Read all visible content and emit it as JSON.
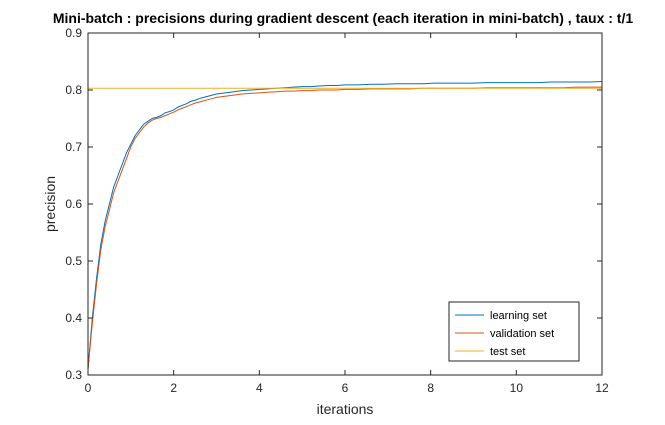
{
  "chart_data": {
    "type": "line",
    "title": "Mini-batch : precisions during gradient descent (each iteration in mini-batch) , taux : t/1",
    "xlabel": "iterations",
    "ylabel": "precision",
    "xlim": [
      0,
      12
    ],
    "ylim": [
      0.3,
      0.9
    ],
    "xticks": [
      0,
      2,
      4,
      6,
      8,
      10,
      12
    ],
    "yticks": [
      0.3,
      0.4,
      0.5,
      0.6,
      0.7,
      0.8,
      0.9
    ],
    "grid": false,
    "legend_position": "bottom-right",
    "x": [
      0,
      0.1,
      0.2,
      0.3,
      0.4,
      0.5,
      0.6,
      0.7,
      0.8,
      0.9,
      1.0,
      1.1,
      1.2,
      1.3,
      1.4,
      1.5,
      1.6,
      1.7,
      1.8,
      1.9,
      2.0,
      2.1,
      2.2,
      2.3,
      2.4,
      2.5,
      2.6,
      2.7,
      2.8,
      2.9,
      3.0,
      3.2,
      3.4,
      3.6,
      3.8,
      4.0,
      4.2,
      4.4,
      4.6,
      4.8,
      5.0,
      5.2,
      5.4,
      5.6,
      5.8,
      6.0,
      6.3,
      6.6,
      6.9,
      7.2,
      7.5,
      7.8,
      8.1,
      8.4,
      8.7,
      9.0,
      9.3,
      9.6,
      9.9,
      10.2,
      10.5,
      10.8,
      11.1,
      11.4,
      11.7,
      12.0
    ],
    "series": [
      {
        "name": "learning set",
        "color": "#0072bd",
        "values": [
          0.31,
          0.4,
          0.47,
          0.53,
          0.57,
          0.6,
          0.63,
          0.65,
          0.67,
          0.69,
          0.705,
          0.72,
          0.73,
          0.74,
          0.745,
          0.75,
          0.752,
          0.755,
          0.76,
          0.762,
          0.765,
          0.77,
          0.773,
          0.776,
          0.78,
          0.782,
          0.785,
          0.787,
          0.789,
          0.791,
          0.793,
          0.795,
          0.797,
          0.799,
          0.8,
          0.801,
          0.802,
          0.803,
          0.804,
          0.805,
          0.806,
          0.806,
          0.807,
          0.808,
          0.808,
          0.809,
          0.809,
          0.81,
          0.81,
          0.811,
          0.811,
          0.811,
          0.812,
          0.812,
          0.812,
          0.812,
          0.813,
          0.813,
          0.813,
          0.813,
          0.813,
          0.814,
          0.814,
          0.814,
          0.814,
          0.815
        ]
      },
      {
        "name": "validation set",
        "color": "#d95319",
        "values": [
          0.31,
          0.39,
          0.46,
          0.52,
          0.56,
          0.59,
          0.62,
          0.64,
          0.66,
          0.68,
          0.7,
          0.715,
          0.725,
          0.735,
          0.742,
          0.747,
          0.75,
          0.752,
          0.755,
          0.758,
          0.761,
          0.765,
          0.768,
          0.771,
          0.774,
          0.777,
          0.779,
          0.781,
          0.783,
          0.785,
          0.787,
          0.789,
          0.791,
          0.793,
          0.794,
          0.795,
          0.796,
          0.797,
          0.798,
          0.798,
          0.799,
          0.799,
          0.8,
          0.8,
          0.8,
          0.801,
          0.801,
          0.802,
          0.802,
          0.802,
          0.802,
          0.803,
          0.803,
          0.803,
          0.803,
          0.803,
          0.804,
          0.804,
          0.804,
          0.804,
          0.804,
          0.804,
          0.804,
          0.805,
          0.805,
          0.805
        ]
      },
      {
        "name": "test set",
        "color": "#edb120",
        "values": [
          0.803,
          0.803,
          0.803,
          0.803,
          0.803,
          0.803,
          0.803,
          0.803,
          0.803,
          0.803,
          0.803,
          0.803,
          0.803,
          0.803,
          0.803,
          0.803,
          0.803,
          0.803,
          0.803,
          0.803,
          0.803,
          0.803,
          0.803,
          0.803,
          0.803,
          0.803,
          0.803,
          0.803,
          0.803,
          0.803,
          0.803,
          0.803,
          0.803,
          0.803,
          0.803,
          0.803,
          0.803,
          0.803,
          0.803,
          0.803,
          0.803,
          0.803,
          0.803,
          0.803,
          0.803,
          0.803,
          0.803,
          0.803,
          0.803,
          0.803,
          0.803,
          0.803,
          0.803,
          0.803,
          0.803,
          0.803,
          0.803,
          0.803,
          0.803,
          0.803,
          0.803,
          0.803,
          0.803,
          0.803,
          0.803,
          0.803
        ]
      }
    ]
  }
}
